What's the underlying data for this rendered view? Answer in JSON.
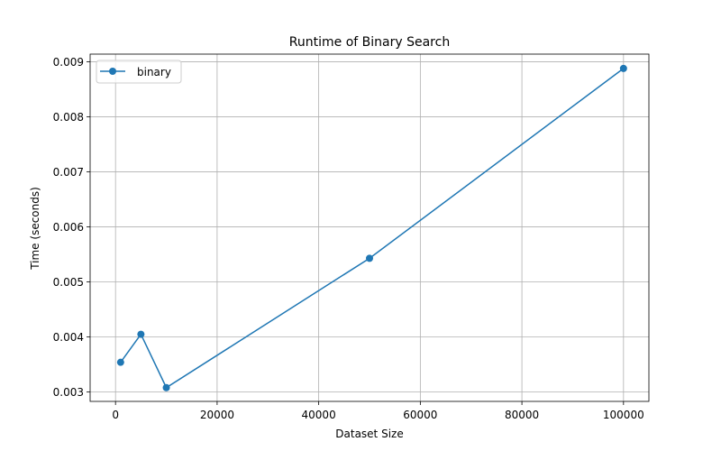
{
  "chart_data": {
    "type": "line",
    "title": "Runtime of Binary Search",
    "xlabel": "Dataset Size",
    "ylabel": "Time (seconds)",
    "xlim": [
      -5000,
      105000
    ],
    "ylim": [
      0.00283,
      0.00914
    ],
    "xticks": [
      0,
      20000,
      40000,
      60000,
      80000,
      100000
    ],
    "xtick_labels": [
      "0",
      "20000",
      "40000",
      "60000",
      "80000",
      "100000"
    ],
    "yticks": [
      0.003,
      0.004,
      0.005,
      0.006,
      0.007,
      0.008,
      0.009
    ],
    "ytick_labels": [
      "0.003",
      "0.004",
      "0.005",
      "0.006",
      "0.007",
      "0.008",
      "0.009"
    ],
    "grid": true,
    "legend_position": "top-left",
    "series": [
      {
        "name": "binary",
        "color": "#1f77b4",
        "marker": "circle",
        "x": [
          1000,
          5000,
          10000,
          50000,
          100000
        ],
        "y": [
          0.00354,
          0.00405,
          0.00308,
          0.00543,
          0.00888
        ]
      }
    ]
  }
}
